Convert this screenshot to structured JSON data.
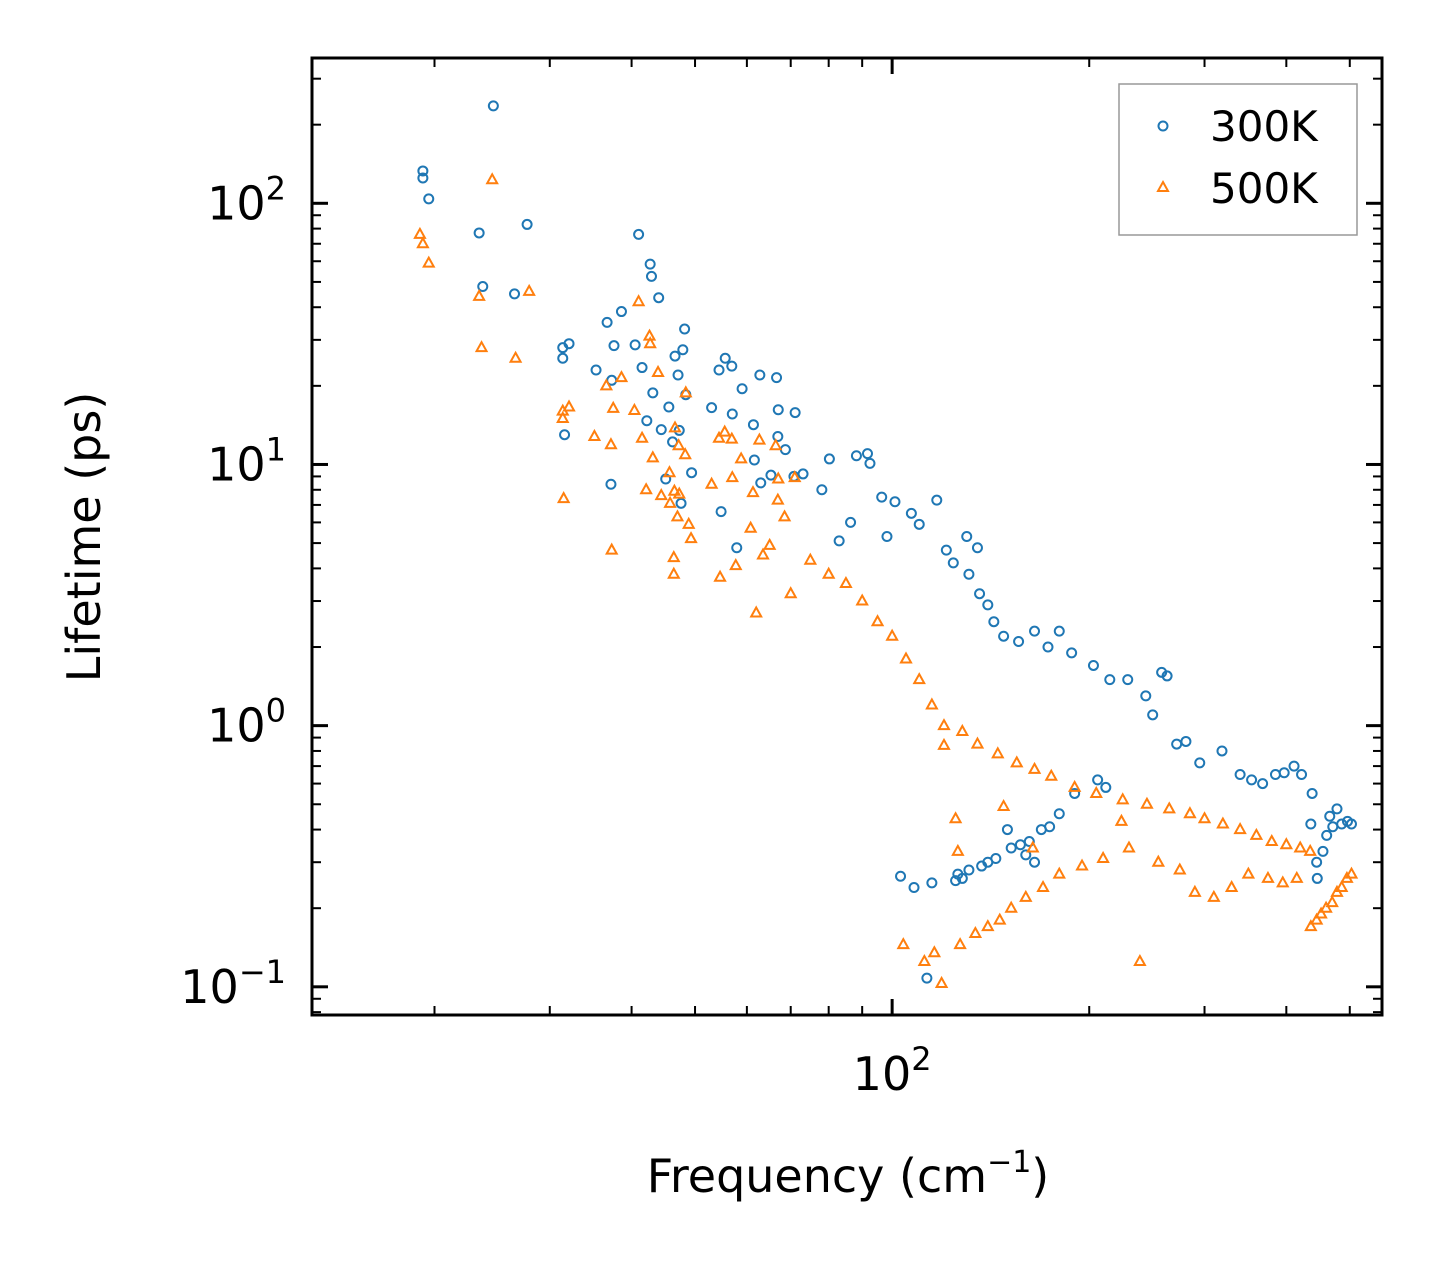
{
  "chart_data": {
    "type": "scatter",
    "xscale": "log",
    "yscale": "log",
    "xlabel": "Frequency (cm",
    "xlabel_sup": "−1",
    "xlabel_end": ")",
    "ylabel": "Lifetime (ps)",
    "xlim": [
      13,
      560
    ],
    "ylim": [
      0.078,
      360
    ],
    "x_ticks": [
      {
        "base": "10",
        "exp": "2",
        "value": 100
      }
    ],
    "y_ticks": [
      {
        "base": "10",
        "exp": "−1",
        "value": 0.1
      },
      {
        "base": "10",
        "exp": "0",
        "value": 1
      },
      {
        "base": "10",
        "exp": "1",
        "value": 10
      },
      {
        "base": "10",
        "exp": "2",
        "value": 100
      }
    ],
    "legend": {
      "placement": "top-right",
      "entries": [
        "300K",
        "500K"
      ]
    },
    "series": [
      {
        "name": "300K",
        "marker": "circle",
        "color": "#1f77b4",
        "points": [
          [
            19.2,
            133
          ],
          [
            19.2,
            125
          ],
          [
            19.6,
            104
          ],
          [
            24.6,
            236
          ],
          [
            23.4,
            77
          ],
          [
            23.7,
            48
          ],
          [
            26.5,
            45
          ],
          [
            27.7,
            83
          ],
          [
            31.4,
            28
          ],
          [
            31.4,
            25.5
          ],
          [
            31.6,
            13
          ],
          [
            32.1,
            29
          ],
          [
            35.3,
            23
          ],
          [
            36.7,
            35
          ],
          [
            37.3,
            21
          ],
          [
            37.6,
            28.5
          ],
          [
            38.6,
            38.5
          ],
          [
            37.2,
            8.4
          ],
          [
            40.5,
            28.7
          ],
          [
            41.0,
            76
          ],
          [
            42.7,
            58.5
          ],
          [
            42.9,
            52.5
          ],
          [
            44.0,
            43.5
          ],
          [
            41.5,
            23.5
          ],
          [
            43.1,
            18.8
          ],
          [
            42.2,
            14.7
          ],
          [
            44.4,
            13.6
          ],
          [
            45.6,
            16.6
          ],
          [
            46.6,
            26
          ],
          [
            47.1,
            22
          ],
          [
            47.3,
            13.5
          ],
          [
            48.2,
            33
          ],
          [
            48.4,
            18.5
          ],
          [
            49.4,
            9.3
          ],
          [
            47.9,
            27.5
          ],
          [
            46.2,
            12.2
          ],
          [
            45.1,
            8.8
          ],
          [
            47.6,
            7.1
          ],
          [
            53.0,
            16.5
          ],
          [
            54.4,
            23
          ],
          [
            55.6,
            25.5
          ],
          [
            56.9,
            23.8
          ],
          [
            57.0,
            15.6
          ],
          [
            59.0,
            19.5
          ],
          [
            61.4,
            14.2
          ],
          [
            62.8,
            22
          ],
          [
            66.6,
            21.5
          ],
          [
            66.9,
            12.8
          ],
          [
            67.0,
            16.2
          ],
          [
            68.7,
            11.4
          ],
          [
            71.1,
            15.8
          ],
          [
            61.6,
            10.4
          ],
          [
            65.3,
            9.1
          ],
          [
            63.0,
            8.5
          ],
          [
            57.9,
            4.8
          ],
          [
            54.8,
            6.6
          ],
          [
            70.8,
            9.0
          ],
          [
            73.1,
            9.2
          ],
          [
            78.1,
            8.0
          ],
          [
            80.2,
            10.5
          ],
          [
            88.2,
            10.8
          ],
          [
            91.7,
            11.0
          ],
          [
            92.5,
            10.1
          ],
          [
            83.0,
            5.1
          ],
          [
            96.4,
            7.5
          ],
          [
            86.4,
            6.0
          ],
          [
            98.2,
            5.3
          ],
          [
            101,
            7.2
          ],
          [
            107,
            6.5
          ],
          [
            110,
            5.9
          ],
          [
            117,
            7.3
          ],
          [
            121,
            4.7
          ],
          [
            124,
            4.2
          ],
          [
            130,
            5.3
          ],
          [
            131,
            3.8
          ],
          [
            135,
            4.8
          ],
          [
            136,
            3.2
          ],
          [
            140,
            2.9
          ],
          [
            143,
            2.5
          ],
          [
            148,
            2.2
          ],
          [
            156,
            2.1
          ],
          [
            165,
            2.3
          ],
          [
            173,
            2.0
          ],
          [
            180,
            2.3
          ],
          [
            188,
            1.9
          ],
          [
            203,
            1.7
          ],
          [
            215,
            1.5
          ],
          [
            229,
            1.5
          ],
          [
            244,
            1.3
          ],
          [
            258,
            1.6
          ],
          [
            263,
            1.55
          ],
          [
            250,
            1.1
          ],
          [
            272,
            0.85
          ],
          [
            281,
            0.87
          ],
          [
            295,
            0.72
          ],
          [
            319,
            0.8
          ],
          [
            340,
            0.65
          ],
          [
            354,
            0.62
          ],
          [
            368,
            0.6
          ],
          [
            385,
            0.65
          ],
          [
            397,
            0.66
          ],
          [
            411,
            0.7
          ],
          [
            422,
            0.65
          ],
          [
            438,
            0.55
          ],
          [
            436,
            0.42
          ],
          [
            445,
            0.3
          ],
          [
            446,
            0.26
          ],
          [
            455,
            0.33
          ],
          [
            461,
            0.38
          ],
          [
            466,
            0.45
          ],
          [
            471,
            0.41
          ],
          [
            478,
            0.48
          ],
          [
            486,
            0.42
          ],
          [
            496,
            0.43
          ],
          [
            503,
            0.42
          ],
          [
            103,
            0.265
          ],
          [
            108,
            0.24
          ],
          [
            115,
            0.25
          ],
          [
            126,
            0.27
          ],
          [
            128,
            0.26
          ],
          [
            131,
            0.28
          ],
          [
            137,
            0.29
          ],
          [
            140,
            0.3
          ],
          [
            144,
            0.31
          ],
          [
            152,
            0.34
          ],
          [
            157,
            0.35
          ],
          [
            162,
            0.36
          ],
          [
            169,
            0.4
          ],
          [
            174,
            0.41
          ],
          [
            180,
            0.46
          ],
          [
            190,
            0.55
          ],
          [
            206,
            0.62
          ],
          [
            212,
            0.58
          ],
          [
            150,
            0.4
          ],
          [
            160,
            0.32
          ],
          [
            165,
            0.3
          ],
          [
            125,
            0.255
          ],
          [
            113,
            0.108
          ]
        ]
      },
      {
        "name": "500K",
        "marker": "triangle",
        "color": "#ff7f0e",
        "points": [
          [
            19.0,
            76
          ],
          [
            19.2,
            70
          ],
          [
            19.6,
            59
          ],
          [
            24.5,
            123
          ],
          [
            23.4,
            44
          ],
          [
            23.6,
            28
          ],
          [
            26.6,
            25.5
          ],
          [
            27.9,
            46
          ],
          [
            31.4,
            16
          ],
          [
            31.4,
            15
          ],
          [
            31.5,
            7.4
          ],
          [
            32.1,
            16.6
          ],
          [
            35.1,
            12.8
          ],
          [
            36.6,
            20
          ],
          [
            37.2,
            11.9
          ],
          [
            37.5,
            16.4
          ],
          [
            38.6,
            21.5
          ],
          [
            37.3,
            4.7
          ],
          [
            40.4,
            16.1
          ],
          [
            41.0,
            42
          ],
          [
            42.6,
            31
          ],
          [
            42.7,
            29
          ],
          [
            43.9,
            22.5
          ],
          [
            41.5,
            12.6
          ],
          [
            43.1,
            10.6
          ],
          [
            42.1,
            8.0
          ],
          [
            44.4,
            7.6
          ],
          [
            45.7,
            9.3
          ],
          [
            46.6,
            13.8
          ],
          [
            47.2,
            11.8
          ],
          [
            47.3,
            7.7
          ],
          [
            48.4,
            18.8
          ],
          [
            48.3,
            10.9
          ],
          [
            49.3,
            5.2
          ],
          [
            46.5,
            7.9
          ],
          [
            45.8,
            7.1
          ],
          [
            47.0,
            6.3
          ],
          [
            48.9,
            5.9
          ],
          [
            46.4,
            4.4
          ],
          [
            46.4,
            3.8
          ],
          [
            53.0,
            8.4
          ],
          [
            54.4,
            12.6
          ],
          [
            55.5,
            13.3
          ],
          [
            56.9,
            12.5
          ],
          [
            57.0,
            8.9
          ],
          [
            58.8,
            10.5
          ],
          [
            61.3,
            7.8
          ],
          [
            62.7,
            12.4
          ],
          [
            66.4,
            11.8
          ],
          [
            66.9,
            7.3
          ],
          [
            67.0,
            8.8
          ],
          [
            68.5,
            6.3
          ],
          [
            71.0,
            8.9
          ],
          [
            60.8,
            5.7
          ],
          [
            65.0,
            4.9
          ],
          [
            63.5,
            4.5
          ],
          [
            57.7,
            4.1
          ],
          [
            54.6,
            3.7
          ],
          [
            62.0,
            2.7
          ],
          [
            70.0,
            3.2
          ],
          [
            75.0,
            4.3
          ],
          [
            80.0,
            3.8
          ],
          [
            85.0,
            3.5
          ],
          [
            90.0,
            3.0
          ],
          [
            95.0,
            2.5
          ],
          [
            100,
            2.2
          ],
          [
            105,
            1.8
          ],
          [
            110,
            1.5
          ],
          [
            115,
            1.2
          ],
          [
            120,
            1.0
          ],
          [
            128,
            0.95
          ],
          [
            135,
            0.85
          ],
          [
            145,
            0.78
          ],
          [
            155,
            0.72
          ],
          [
            165,
            0.68
          ],
          [
            175,
            0.64
          ],
          [
            190,
            0.58
          ],
          [
            205,
            0.55
          ],
          [
            225,
            0.52
          ],
          [
            245,
            0.5
          ],
          [
            265,
            0.48
          ],
          [
            285,
            0.46
          ],
          [
            300,
            0.44
          ],
          [
            320,
            0.42
          ],
          [
            340,
            0.4
          ],
          [
            360,
            0.38
          ],
          [
            380,
            0.36
          ],
          [
            400,
            0.35
          ],
          [
            420,
            0.34
          ],
          [
            435,
            0.33
          ],
          [
            104,
            0.145
          ],
          [
            112,
            0.125
          ],
          [
            116,
            0.135
          ],
          [
            119,
            0.103
          ],
          [
            127,
            0.145
          ],
          [
            134,
            0.16
          ],
          [
            140,
            0.17
          ],
          [
            146,
            0.18
          ],
          [
            152,
            0.2
          ],
          [
            160,
            0.22
          ],
          [
            170,
            0.24
          ],
          [
            180,
            0.27
          ],
          [
            195,
            0.29
          ],
          [
            210,
            0.31
          ],
          [
            230,
            0.34
          ],
          [
            255,
            0.3
          ],
          [
            275,
            0.28
          ],
          [
            290,
            0.23
          ],
          [
            310,
            0.22
          ],
          [
            330,
            0.24
          ],
          [
            350,
            0.27
          ],
          [
            375,
            0.26
          ],
          [
            395,
            0.25
          ],
          [
            415,
            0.26
          ],
          [
            436,
            0.17
          ],
          [
            445,
            0.18
          ],
          [
            452,
            0.19
          ],
          [
            460,
            0.2
          ],
          [
            470,
            0.21
          ],
          [
            478,
            0.23
          ],
          [
            486,
            0.24
          ],
          [
            495,
            0.26
          ],
          [
            503,
            0.27
          ],
          [
            120,
            0.84
          ],
          [
            125,
            0.44
          ],
          [
            126,
            0.33
          ],
          [
            148,
            0.49
          ],
          [
            164,
            0.34
          ],
          [
            239,
            0.125
          ],
          [
            224,
            0.43
          ]
        ]
      }
    ]
  }
}
